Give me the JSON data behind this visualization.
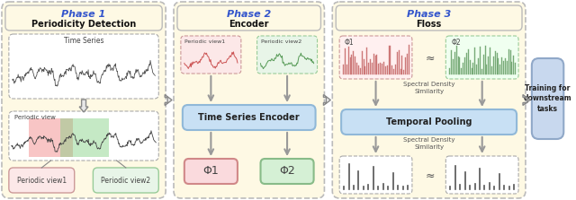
{
  "fig_width": 6.4,
  "fig_height": 2.23,
  "dpi": 100,
  "bg_color": "#ffffff",
  "phase_bg_color": "#fef9e4",
  "phase_border_color": "#bbbbbb",
  "phase_title_color": "#3355cc",
  "phase_subtitle_color": "#111111",
  "encoder_box_color": "#c8e0f4",
  "encoder_box_edge": "#90b8d8",
  "phi1_box_color": "#fadadd",
  "phi1_box_edge": "#d08888",
  "phi2_box_color": "#d5f0d5",
  "phi2_box_edge": "#88bb88",
  "temporal_box_color": "#c8e0f4",
  "temporal_box_edge": "#90b8d8",
  "downstream_box_color": "#c8d8ee",
  "downstream_box_edge": "#90a8c8",
  "arrow_gray": "#999999",
  "fat_arrow_color": "#aaaaaa",
  "ts_signal_color": "#555555",
  "pv1_bg": "#fce8e8",
  "pv1_edge": "#cc9999",
  "pv2_bg": "#e8f5e8",
  "pv2_edge": "#99cc99",
  "red_region_color": "#f08080",
  "green_region_color": "#80d080",
  "phase1_title": "Phase 1",
  "phase1_subtitle": "Periodicity Detection",
  "phase2_title": "Phase 2",
  "phase2_subtitle": "Encoder",
  "phase3_title": "Phase 3",
  "phase3_subtitle": "Floss",
  "ts_label": "Time Series",
  "periodic_view_label": "Periodic view",
  "pv1_label": "Periodic view1",
  "pv2_label": "Periodic view2",
  "encoder_label": "Time Series Encoder",
  "temporal_label": "Temporal Pooling",
  "spectral_label": "Spectral Density\nSimilarity",
  "phi1_label": "Φ1",
  "phi2_label": "Φ2",
  "downstream_text": "Training for\ndownstream\ntasks"
}
